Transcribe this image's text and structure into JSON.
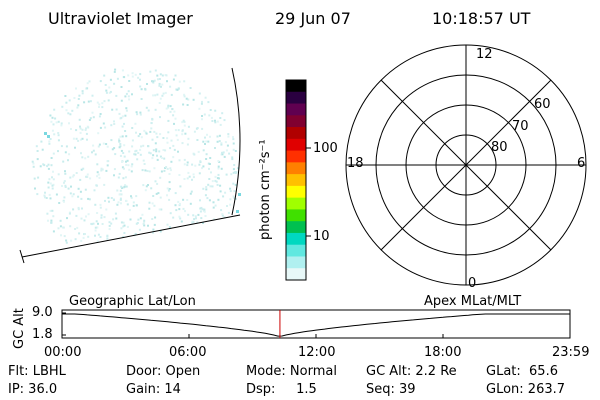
{
  "header": {
    "instrument": "Ultraviolet Imager",
    "date": "29 Jun 07",
    "time": "10:18:57 UT"
  },
  "colorbar": {
    "unit_label": "photon cm⁻²s⁻¹",
    "ticks": [
      "100",
      "10"
    ],
    "colors": [
      "#000000",
      "#2a0040",
      "#600050",
      "#800030",
      "#b00000",
      "#e00000",
      "#ff3000",
      "#ff8000",
      "#ffc000",
      "#ffff00",
      "#a0ff00",
      "#40e000",
      "#00c050",
      "#00d8c0",
      "#60e8e0",
      "#b0f0f0",
      "#e8f8f8"
    ]
  },
  "polar_plot": {
    "labels": {
      "top": "12",
      "bottom": "0",
      "left": "18",
      "right": "6"
    },
    "rings": [
      "60",
      "70",
      "80"
    ]
  },
  "timeline": {
    "y_axis_label": "GC Alt",
    "y_ticks": [
      "9.0",
      "1.8"
    ],
    "left_caption": "Geographic Lat/Lon",
    "right_caption": "Apex MLat/MLT",
    "x_ticks": [
      "00:00",
      "06:00",
      "12:00",
      "18:00",
      "23:59"
    ],
    "current_time_fraction": 0.429
  },
  "info": {
    "col1": [
      "Flt: LBHL",
      "IP: 36.0"
    ],
    "col2": [
      "Door: Open",
      "Gain: 14"
    ],
    "col3": [
      "Mode: Normal",
      "Dsp:     1.5"
    ],
    "col4": [
      "GC Alt: 2.2 Re",
      "Seq: 39"
    ],
    "col5": [
      "GLat:  65.6",
      "GLon: 263.7"
    ]
  }
}
